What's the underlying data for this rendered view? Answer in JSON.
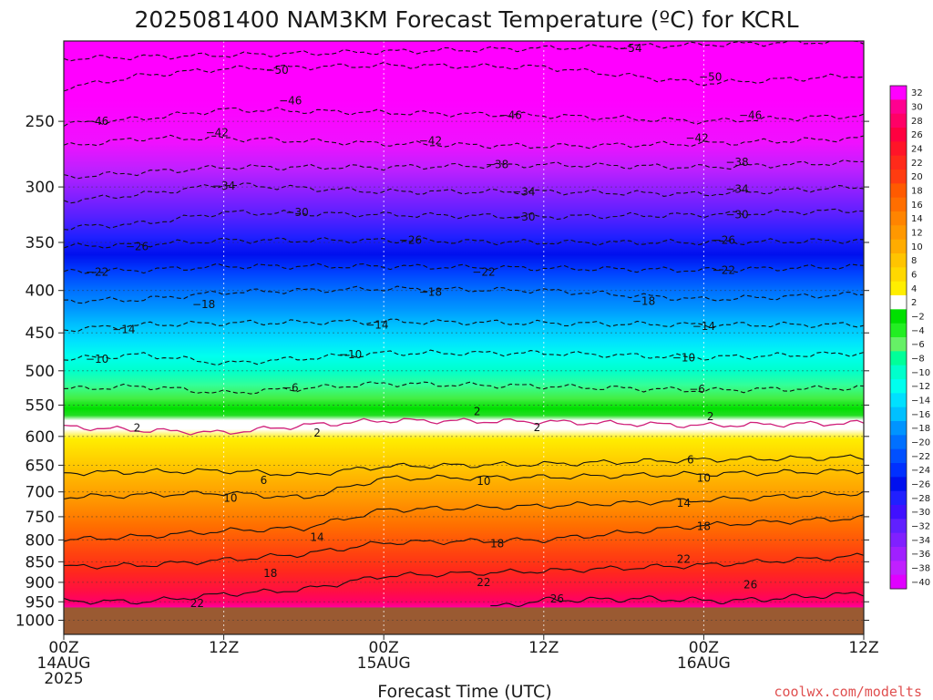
{
  "chart_data": {
    "type": "heatmap",
    "title": "2025081400 NAM3KM Forecast Temperature (ºC) for KCRL",
    "xlabel": "Forecast Time (UTC)",
    "ylabel": "",
    "credit": "coolwx.com/modelts",
    "x_range_hours": [
      0,
      60
    ],
    "y_scale": "log-pressure",
    "y_range_hpa": [
      1040,
      200
    ],
    "ground_level_hpa": 965,
    "grid": true,
    "x_ticks": [
      {
        "hour": 0,
        "line1": "00Z",
        "line2": "14AUG",
        "line3": "2025"
      },
      {
        "hour": 12,
        "line1": "12Z",
        "line2": "",
        "line3": ""
      },
      {
        "hour": 24,
        "line1": "00Z",
        "line2": "15AUG",
        "line3": ""
      },
      {
        "hour": 36,
        "line1": "12Z",
        "line2": "",
        "line3": ""
      },
      {
        "hour": 48,
        "line1": "00Z",
        "line2": "16AUG",
        "line3": ""
      },
      {
        "hour": 60,
        "line1": "12Z",
        "line2": "",
        "line3": ""
      }
    ],
    "y_ticks": [
      {
        "p": 250,
        "label": "250"
      },
      {
        "p": 300,
        "label": "300"
      },
      {
        "p": 350,
        "label": "350"
      },
      {
        "p": 400,
        "label": "400"
      },
      {
        "p": 450,
        "label": "450"
      },
      {
        "p": 500,
        "label": "500"
      },
      {
        "p": 550,
        "label": "550"
      },
      {
        "p": 600,
        "label": "600"
      },
      {
        "p": 650,
        "label": "650"
      },
      {
        "p": 700,
        "label": "700"
      },
      {
        "p": 750,
        "label": "750"
      },
      {
        "p": 800,
        "label": "800"
      },
      {
        "p": 850,
        "label": "850"
      },
      {
        "p": 900,
        "label": "900"
      },
      {
        "p": 950,
        "label": "950"
      },
      {
        "p": 1000,
        "label": "1000"
      }
    ],
    "colorbar": {
      "levels": [
        32,
        30,
        28,
        26,
        24,
        22,
        20,
        18,
        16,
        14,
        12,
        10,
        8,
        6,
        4,
        2,
        -2,
        -4,
        -6,
        -8,
        -10,
        -12,
        -14,
        -16,
        -18,
        -20,
        -22,
        -24,
        -26,
        -28,
        -30,
        -32,
        -34,
        -36,
        -38,
        -40
      ],
      "labels": [
        "32",
        "30",
        "28",
        "26",
        "24",
        "22",
        "20",
        "18",
        "16",
        "14",
        "12",
        "10",
        "8",
        "6",
        "4",
        "2",
        "−2",
        "−4",
        "−6",
        "−8",
        "−10",
        "−12",
        "−14",
        "−16",
        "−18",
        "−20",
        "−22",
        "−24",
        "−26",
        "−28",
        "−30",
        "−32",
        "−34",
        "−36",
        "−38",
        "−40"
      ],
      "colors": [
        "#ff00ff",
        "#ff0090",
        "#ff0066",
        "#ff0040",
        "#ff1428",
        "#ff2a1a",
        "#ff3c10",
        "#ff5a00",
        "#ff6e00",
        "#ff8400",
        "#ff9800",
        "#ffac00",
        "#ffc400",
        "#ffd800",
        "#ffee00",
        "#ffffff",
        "#00e000",
        "#22ee22",
        "#66f066",
        "#00ff99",
        "#00ffcc",
        "#00ffee",
        "#00e0ff",
        "#00c0ff",
        "#0094ff",
        "#0070ff",
        "#0050ff",
        "#0030ff",
        "#0010ee",
        "#2020ff",
        "#4010ff",
        "#6020ff",
        "#8020ff",
        "#a020ff",
        "#c020ff",
        "#e000ff"
      ]
    },
    "isotherms": [
      {
        "value": -54,
        "label": "−54",
        "p_at_hour": [
          [
            0,
            210
          ],
          [
            60,
            200
          ]
        ]
      },
      {
        "value": -50,
        "label": "−50",
        "p_at_hour": [
          [
            0,
            228
          ],
          [
            6,
            220
          ],
          [
            12,
            216
          ],
          [
            24,
            214
          ],
          [
            36,
            215
          ],
          [
            48,
            225
          ],
          [
            60,
            220
          ]
        ]
      },
      {
        "value": -46,
        "label": "−46",
        "p_at_hour": [
          [
            0,
            252
          ],
          [
            6,
            248
          ],
          [
            12,
            242
          ],
          [
            24,
            244
          ],
          [
            36,
            246
          ],
          [
            48,
            250
          ],
          [
            60,
            246
          ]
        ]
      },
      {
        "value": -42,
        "label": "−42",
        "p_at_hour": [
          [
            0,
            268
          ],
          [
            6,
            262
          ],
          [
            12,
            262
          ],
          [
            24,
            266
          ],
          [
            36,
            268
          ],
          [
            48,
            266
          ],
          [
            60,
            262
          ]
        ]
      },
      {
        "value": -38,
        "label": "−38",
        "p_at_hour": [
          [
            0,
            292
          ],
          [
            6,
            288
          ],
          [
            12,
            284
          ],
          [
            24,
            284
          ],
          [
            36,
            282
          ],
          [
            48,
            284
          ],
          [
            60,
            280
          ]
        ]
      },
      {
        "value": -34,
        "label": "−34",
        "p_at_hour": [
          [
            0,
            312
          ],
          [
            6,
            306
          ],
          [
            12,
            298
          ],
          [
            24,
            304
          ],
          [
            36,
            304
          ],
          [
            48,
            306
          ],
          [
            60,
            300
          ]
        ]
      },
      {
        "value": -30,
        "label": "−30",
        "p_at_hour": [
          [
            0,
            336
          ],
          [
            6,
            332
          ],
          [
            12,
            322
          ],
          [
            24,
            324
          ],
          [
            36,
            326
          ],
          [
            48,
            324
          ],
          [
            60,
            320
          ]
        ]
      },
      {
        "value": -26,
        "label": "−26",
        "p_at_hour": [
          [
            0,
            354
          ],
          [
            6,
            352
          ],
          [
            12,
            348
          ],
          [
            24,
            348
          ],
          [
            36,
            350
          ],
          [
            48,
            350
          ],
          [
            60,
            348
          ]
        ]
      },
      {
        "value": -22,
        "label": "−22",
        "p_at_hour": [
          [
            0,
            380
          ],
          [
            6,
            378
          ],
          [
            12,
            374
          ],
          [
            24,
            374
          ],
          [
            36,
            376
          ],
          [
            48,
            378
          ],
          [
            60,
            374
          ]
        ]
      },
      {
        "value": -18,
        "label": "−18",
        "p_at_hour": [
          [
            0,
            412
          ],
          [
            6,
            410
          ],
          [
            12,
            402
          ],
          [
            24,
            398
          ],
          [
            36,
            400
          ],
          [
            48,
            410
          ],
          [
            60,
            404
          ]
        ]
      },
      {
        "value": -14,
        "label": "−14",
        "p_at_hour": [
          [
            0,
            446
          ],
          [
            6,
            440
          ],
          [
            12,
            438
          ],
          [
            24,
            436
          ],
          [
            36,
            438
          ],
          [
            48,
            440
          ],
          [
            60,
            440
          ]
        ]
      },
      {
        "value": -10,
        "label": "−10",
        "p_at_hour": [
          [
            0,
            484
          ],
          [
            6,
            478
          ],
          [
            12,
            490
          ],
          [
            24,
            476
          ],
          [
            36,
            476
          ],
          [
            48,
            482
          ],
          [
            60,
            476
          ]
        ]
      },
      {
        "value": -6,
        "label": "−6",
        "p_at_hour": [
          [
            0,
            526
          ],
          [
            6,
            522
          ],
          [
            12,
            532
          ],
          [
            24,
            518
          ],
          [
            36,
            522
          ],
          [
            48,
            528
          ],
          [
            60,
            524
          ]
        ]
      },
      {
        "value": 2,
        "label": "2",
        "p_at_hour": [
          [
            0,
            584
          ],
          [
            6,
            590
          ],
          [
            12,
            594
          ],
          [
            18,
            582
          ],
          [
            24,
            574
          ],
          [
            36,
            576
          ],
          [
            48,
            582
          ],
          [
            60,
            578
          ]
        ]
      },
      {
        "value": 6,
        "label": "6",
        "p_at_hour": [
          [
            0,
            664
          ],
          [
            6,
            662
          ],
          [
            12,
            660
          ],
          [
            18,
            668
          ],
          [
            24,
            652
          ],
          [
            36,
            648
          ],
          [
            48,
            640
          ],
          [
            60,
            636
          ]
        ]
      },
      {
        "value": 10,
        "label": "10",
        "p_at_hour": [
          [
            0,
            710
          ],
          [
            6,
            706
          ],
          [
            12,
            702
          ],
          [
            18,
            712
          ],
          [
            24,
            674
          ],
          [
            36,
            672
          ],
          [
            48,
            666
          ],
          [
            60,
            660
          ]
        ]
      },
      {
        "value": 14,
        "label": "14",
        "p_at_hour": [
          [
            0,
            800
          ],
          [
            6,
            792
          ],
          [
            12,
            780
          ],
          [
            18,
            774
          ],
          [
            24,
            736
          ],
          [
            36,
            728
          ],
          [
            48,
            716
          ],
          [
            60,
            702
          ]
        ]
      },
      {
        "value": 18,
        "label": "18",
        "p_at_hour": [
          [
            0,
            862
          ],
          [
            6,
            858
          ],
          [
            12,
            846
          ],
          [
            18,
            832
          ],
          [
            24,
            806
          ],
          [
            36,
            800
          ],
          [
            48,
            768
          ],
          [
            60,
            752
          ]
        ]
      },
      {
        "value": 22,
        "label": "22",
        "p_at_hour": [
          [
            0,
            948
          ],
          [
            6,
            950
          ],
          [
            12,
            930
          ],
          [
            18,
            918
          ],
          [
            24,
            884
          ],
          [
            36,
            872
          ],
          [
            48,
            858
          ],
          [
            60,
            836
          ]
        ]
      },
      {
        "value": 26,
        "label": "26",
        "p_at_hour": [
          [
            32,
            965
          ],
          [
            36,
            946
          ],
          [
            44,
            942
          ],
          [
            50,
            948
          ],
          [
            60,
            928
          ]
        ]
      }
    ],
    "contour_labels": [
      {
        "text": "−54",
        "hour": 42.5,
        "p": 204
      },
      {
        "text": "−50",
        "hour": 16.0,
        "p": 217
      },
      {
        "text": "−50",
        "hour": 48.5,
        "p": 221
      },
      {
        "text": "−46",
        "hour": 2.5,
        "p": 250
      },
      {
        "text": "−46",
        "hour": 17.0,
        "p": 236
      },
      {
        "text": "−46",
        "hour": 33.5,
        "p": 246
      },
      {
        "text": "−46",
        "hour": 51.5,
        "p": 246
      },
      {
        "text": "−42",
        "hour": 11.5,
        "p": 258
      },
      {
        "text": "−42",
        "hour": 27.5,
        "p": 264
      },
      {
        "text": "−42",
        "hour": 47.5,
        "p": 262
      },
      {
        "text": "−38",
        "hour": 32.5,
        "p": 282
      },
      {
        "text": "−38",
        "hour": 50.5,
        "p": 280
      },
      {
        "text": "−34",
        "hour": 12.0,
        "p": 299
      },
      {
        "text": "−34",
        "hour": 34.5,
        "p": 304
      },
      {
        "text": "−34",
        "hour": 50.5,
        "p": 302
      },
      {
        "text": "−30",
        "hour": 17.5,
        "p": 322
      },
      {
        "text": "−30",
        "hour": 34.5,
        "p": 326
      },
      {
        "text": "−30",
        "hour": 50.5,
        "p": 324
      },
      {
        "text": "−26",
        "hour": 5.5,
        "p": 354
      },
      {
        "text": "−26",
        "hour": 26.0,
        "p": 348
      },
      {
        "text": "−26",
        "hour": 49.5,
        "p": 348
      },
      {
        "text": "−22",
        "hour": 2.5,
        "p": 380
      },
      {
        "text": "−22",
        "hour": 31.5,
        "p": 380
      },
      {
        "text": "−22",
        "hour": 49.5,
        "p": 378
      },
      {
        "text": "−18",
        "hour": 10.5,
        "p": 416
      },
      {
        "text": "−18",
        "hour": 27.5,
        "p": 402
      },
      {
        "text": "−18",
        "hour": 43.5,
        "p": 412
      },
      {
        "text": "−14",
        "hour": 4.5,
        "p": 446
      },
      {
        "text": "−14",
        "hour": 23.5,
        "p": 440
      },
      {
        "text": "−14",
        "hour": 48.0,
        "p": 442
      },
      {
        "text": "−10",
        "hour": 2.5,
        "p": 484
      },
      {
        "text": "−10",
        "hour": 21.5,
        "p": 478
      },
      {
        "text": "−10",
        "hour": 46.5,
        "p": 482
      },
      {
        "text": "−6",
        "hour": 17.0,
        "p": 524
      },
      {
        "text": "−6",
        "hour": 47.5,
        "p": 526
      },
      {
        "text": "2",
        "hour": 5.5,
        "p": 586
      },
      {
        "text": "2",
        "hour": 19.0,
        "p": 594
      },
      {
        "text": "2",
        "hour": 31.0,
        "p": 560
      },
      {
        "text": "2",
        "hour": 35.5,
        "p": 585
      },
      {
        "text": "2",
        "hour": 48.5,
        "p": 568
      },
      {
        "text": "6",
        "hour": 15.0,
        "p": 678
      },
      {
        "text": "6",
        "hour": 47.0,
        "p": 640
      },
      {
        "text": "10",
        "hour": 12.5,
        "p": 712
      },
      {
        "text": "10",
        "hour": 31.5,
        "p": 680
      },
      {
        "text": "10",
        "hour": 48.0,
        "p": 674
      },
      {
        "text": "14",
        "hour": 19.0,
        "p": 794
      },
      {
        "text": "14",
        "hour": 46.5,
        "p": 722
      },
      {
        "text": "18",
        "hour": 15.5,
        "p": 878
      },
      {
        "text": "18",
        "hour": 32.5,
        "p": 808
      },
      {
        "text": "18",
        "hour": 48.0,
        "p": 770
      },
      {
        "text": "22",
        "hour": 10.0,
        "p": 954
      },
      {
        "text": "22",
        "hour": 31.5,
        "p": 900
      },
      {
        "text": "22",
        "hour": 46.5,
        "p": 844
      },
      {
        "text": "26",
        "hour": 37.0,
        "p": 942
      },
      {
        "text": "26",
        "hour": 51.5,
        "p": 906
      }
    ]
  }
}
